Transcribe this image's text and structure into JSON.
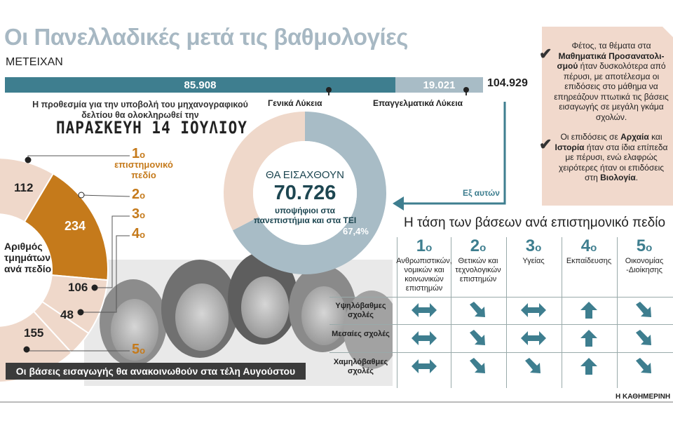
{
  "title": "Οι Πανελλαδικές μετά τις βαθμολογίες",
  "participated": {
    "label": "ΜΕΤΕΙΧΑΝ",
    "general_value": "85.908",
    "vocational_value": "19.021",
    "total_value": "104.929",
    "general_label": "Γενικά Λύκεια",
    "vocational_label": "Επαγγελματικά Λύκεια"
  },
  "deadline": {
    "note": "Η προθεσμία για την υποβολή του μηχανογραφικού δελτίου θα ολοκληρωθεί την",
    "date": "ΠΑΡΑΣΚΕΥΗ 14 ΙΟΥΛΙΟΥ"
  },
  "departments": {
    "center_label": "Αριθμός τμημάτων ανά πεδίο",
    "field_1_label": "επιστημονικό πεδίο",
    "ordinal_suffix": "ο",
    "values": [
      "112",
      "234",
      "106",
      "48",
      "155"
    ],
    "fields": [
      "1",
      "2",
      "3",
      "4",
      "5"
    ],
    "footer": "Οι βάσεις εισαγωγής θα ανακοινωθούν στα τέλη Αυγούστου"
  },
  "admitted": {
    "title": "ΘΑ ΕΙΣΑΧΘΟΥΝ",
    "value": "70.726",
    "subtitle": "υποψήφιοι στα πανεπιστήμια και στα ΤΕΙ",
    "percent": "67,4%",
    "from_them": "Εξ αυτών"
  },
  "sidebar": {
    "p1_pre": "Φέτος, τα θέματα στα",
    "p1_bold": "Μαθηματικά Προσανατολι-σμού",
    "p1_post": "ήταν δυσκολότερα από πέρυσι, με αποτέλεσμα οι επιδόσεις στο μάθημα να επηρεάζουν πτωτικά τις βάσεις εισαγωγής σε μεγάλη γκάμα σχολών.",
    "p2_pre": "Οι επιδόσεις σε",
    "p2_bold1": "Αρχαία",
    "p2_mid1": "και",
    "p2_bold2": "Ιστορία",
    "p2_mid2": "ήταν στα ίδια επίπεδα με πέρυσι, ενώ ελαφρώς χειρότερες ήταν οι επιδόσεις στη",
    "p2_bold3": "Βιολογία",
    "p2_end": "."
  },
  "trend": {
    "title": "Η τάση των βάσεων ανά επιστημονικό πεδίο",
    "columns": [
      {
        "num": "1",
        "label": "Ανθρωπιστικών, νομικών και κοινωνικών επιστημών"
      },
      {
        "num": "2",
        "label": "Θετικών και τεχνολογικών επιστημών"
      },
      {
        "num": "3",
        "label": "Υγείας"
      },
      {
        "num": "4",
        "label": "Εκπαίδευσης"
      },
      {
        "num": "5",
        "label": "Οικονομίας -Διοίκησης"
      }
    ],
    "rows": [
      {
        "label": "Υψηλόβαθμες σχολές",
        "arrows": [
          "stable",
          "down",
          "stable",
          "up",
          "down"
        ]
      },
      {
        "label": "Μεσαίες σχολές",
        "arrows": [
          "stable",
          "down",
          "stable",
          "up",
          "down"
        ]
      },
      {
        "label": "Χαμηλόβαθμες σχολές",
        "arrows": [
          "stable",
          "down",
          "down",
          "up",
          "down"
        ]
      }
    ],
    "arrow_color": "#3e7e8f"
  },
  "credit": "Η ΚΑΘΗΜΕΡΙΝΗ",
  "colors": {
    "teal": "#3e7e8f",
    "light_blue": "#a8bcc6",
    "peach": "#efd8ca",
    "orange": "#c57a1b",
    "title_grey": "#a7b8c3"
  },
  "chart_data": [
    {
      "type": "bar",
      "title": "",
      "xlabel": "",
      "ylabel": "",
      "categories": [
        "Γενικά Λύκεια",
        "Επαγγελματικά Λύκεια"
      ],
      "values": [
        85908,
        19021
      ],
      "total": 104929
    },
    {
      "type": "pie",
      "title": "",
      "categories": [
        "1",
        "2",
        "3",
        "4",
        "5"
      ],
      "values": [
        112,
        234,
        106,
        48,
        155
      ]
    },
    {
      "type": "pie",
      "title": "ΘΑ ΕΙΣΑΧΘΟΥΝ",
      "categories": [
        "admitted",
        "not admitted"
      ],
      "values": [
        67.4,
        32.6
      ]
    },
    {
      "type": "table",
      "title": "Η τάση των βάσεων ανά επιστημονικό πεδίο",
      "columns": [
        "1",
        "2",
        "3",
        "4",
        "5"
      ],
      "rows": [
        "Υψηλόβαθμες σχολές",
        "Μεσαίες σχολές",
        "Χαμηλόβαθμες σχολές"
      ],
      "values": [
        [
          "stable",
          "down",
          "stable",
          "up",
          "down"
        ],
        [
          "stable",
          "down",
          "stable",
          "up",
          "down"
        ],
        [
          "stable",
          "down",
          "down",
          "up",
          "down"
        ]
      ]
    }
  ]
}
